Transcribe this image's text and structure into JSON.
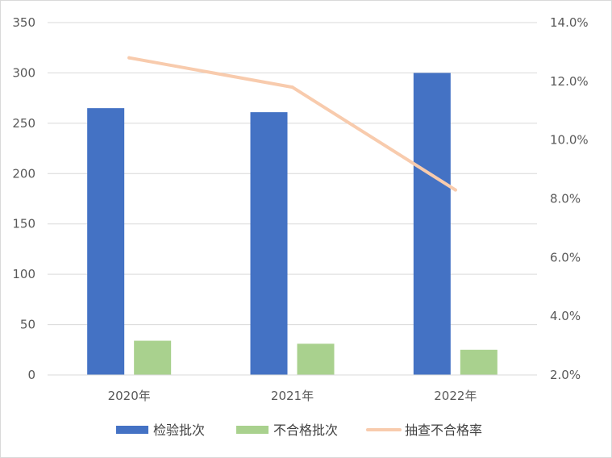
{
  "chart_data": {
    "type": "bar",
    "categories": [
      "2020年",
      "2021年",
      "2022年"
    ],
    "series": [
      {
        "name": "检验批次",
        "kind": "bar",
        "axis": "left",
        "color": "#4472C4",
        "values": [
          265,
          261,
          300
        ]
      },
      {
        "name": "不合格批次",
        "kind": "bar",
        "axis": "left",
        "color": "#A9D18E",
        "values": [
          34,
          31,
          25
        ]
      },
      {
        "name": "抽查不合格率",
        "kind": "line",
        "axis": "right",
        "color": "#F8CBAD",
        "values": [
          0.128,
          0.118,
          0.083
        ]
      }
    ],
    "y_left": {
      "min": 0,
      "max": 350,
      "ticks": [
        0,
        50,
        100,
        150,
        200,
        250,
        300,
        350
      ],
      "tick_labels": [
        "0",
        "50",
        "100",
        "150",
        "200",
        "250",
        "300",
        "350"
      ]
    },
    "y_right": {
      "min": 0.02,
      "max": 0.14,
      "ticks": [
        0.02,
        0.04,
        0.06,
        0.08,
        0.1,
        0.12,
        0.14
      ],
      "tick_labels": [
        "2.0%",
        "4.0%",
        "6.0%",
        "8.0%",
        "10.0%",
        "12.0%",
        "14.0%"
      ]
    },
    "grid": true,
    "legend_position": "bottom",
    "title": "",
    "xlabel": "",
    "ylabel": ""
  }
}
